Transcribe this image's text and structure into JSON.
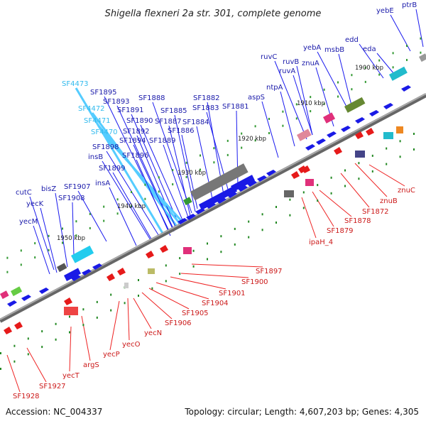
{
  "title": "Shigella flexneri 2a str. 301, complete genome",
  "footer": {
    "accession": "Accession: NC_004337",
    "summary": "Topology: circular; Length: 4,607,203 bp; Genes: 4,305"
  },
  "colors": {
    "forward_gene": "#1a1ae6",
    "reverse_gene": "#e61a1a",
    "forward_label": "#1a1aaa",
    "reverse_label": "#cc1a1a",
    "highlight_label": "#33bbee",
    "backbone": "#888888",
    "ticks": "#339933"
  },
  "kbp_markers": [
    "1900 kbp",
    "1910 kbp",
    "1920 kbp",
    "1930 kbp",
    "1940 kbp",
    "1950 kbp"
  ],
  "upper_labels": [
    {
      "text": "SF4473",
      "kind": "highlight"
    },
    {
      "text": "SF1895",
      "kind": "forward"
    },
    {
      "text": "SF1893",
      "kind": "forward"
    },
    {
      "text": "SF4472",
      "kind": "highlight"
    },
    {
      "text": "SF1891",
      "kind": "forward"
    },
    {
      "text": "SF1888",
      "kind": "forward"
    },
    {
      "text": "SF1890",
      "kind": "forward"
    },
    {
      "text": "SF4471",
      "kind": "highlight"
    },
    {
      "text": "SF1885",
      "kind": "forward"
    },
    {
      "text": "SF1887",
      "kind": "forward"
    },
    {
      "text": "SF1892",
      "kind": "forward"
    },
    {
      "text": "SF4470",
      "kind": "highlight"
    },
    {
      "text": "SF1886",
      "kind": "forward"
    },
    {
      "text": "SF1894",
      "kind": "forward"
    },
    {
      "text": "SF1889",
      "kind": "forward"
    },
    {
      "text": "SF1898",
      "kind": "forward"
    },
    {
      "text": "SF1896",
      "kind": "forward"
    },
    {
      "text": "insB",
      "kind": "forward"
    },
    {
      "text": "SF1899",
      "kind": "forward"
    },
    {
      "text": "insA",
      "kind": "forward"
    },
    {
      "text": "SF1882",
      "kind": "forward"
    },
    {
      "text": "SF1883",
      "kind": "forward"
    },
    {
      "text": "SF1881",
      "kind": "forward"
    },
    {
      "text": "SF1884",
      "kind": "forward"
    },
    {
      "text": "aspS",
      "kind": "forward"
    },
    {
      "text": "ntpA",
      "kind": "forward"
    },
    {
      "text": "ruvC",
      "kind": "forward"
    },
    {
      "text": "ruvB",
      "kind": "forward"
    },
    {
      "text": "ruvA",
      "kind": "forward"
    },
    {
      "text": "znuA",
      "kind": "forward"
    },
    {
      "text": "yebA",
      "kind": "forward"
    },
    {
      "text": "msbB",
      "kind": "forward"
    },
    {
      "text": "edd",
      "kind": "forward"
    },
    {
      "text": "eda",
      "kind": "forward"
    },
    {
      "text": "yebE",
      "kind": "forward"
    },
    {
      "text": "ptrB",
      "kind": "forward"
    },
    {
      "text": "SF1907",
      "kind": "forward"
    },
    {
      "text": "SF1908",
      "kind": "forward"
    },
    {
      "text": "bisZ",
      "kind": "forward"
    },
    {
      "text": "cutC",
      "kind": "forward"
    },
    {
      "text": "yecK",
      "kind": "forward"
    },
    {
      "text": "yecM",
      "kind": "forward"
    }
  ],
  "lower_labels": [
    {
      "text": "znuC"
    },
    {
      "text": "znuB"
    },
    {
      "text": "SF1872"
    },
    {
      "text": "SF1878"
    },
    {
      "text": "SF1879"
    },
    {
      "text": "ipaH_4"
    },
    {
      "text": "SF1897"
    },
    {
      "text": "SF1900"
    },
    {
      "text": "SF1901"
    },
    {
      "text": "SF1904"
    },
    {
      "text": "SF1905"
    },
    {
      "text": "SF1906"
    },
    {
      "text": "yecN"
    },
    {
      "text": "yecO"
    },
    {
      "text": "yecP"
    },
    {
      "text": "argS"
    },
    {
      "text": "yecT"
    },
    {
      "text": "SF1927"
    },
    {
      "text": "SF1928"
    }
  ]
}
